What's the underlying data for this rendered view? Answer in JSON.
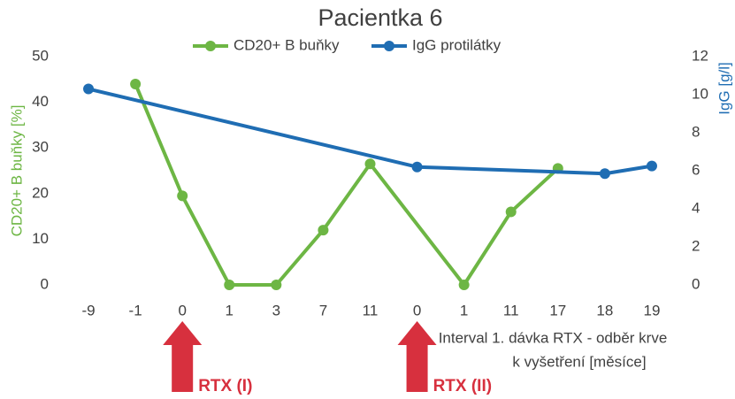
{
  "chart_data": {
    "type": "line",
    "title": "Pacientka 6",
    "categories": [
      "-9",
      "-1",
      "0",
      "1",
      "3",
      "7",
      "11",
      "0",
      "1",
      "11",
      "17",
      "18",
      "19"
    ],
    "series": [
      {
        "name": "CD20+ B buňky",
        "color": "#6db644",
        "values": [
          null,
          44,
          19.5,
          0,
          0,
          12,
          26.5,
          null,
          0,
          16,
          25.5,
          null,
          null
        ]
      },
      {
        "name": "IgG protilátky",
        "color": "#1f6db3",
        "axis": "y2",
        "values": [
          10.3,
          null,
          null,
          null,
          null,
          null,
          null,
          6.2,
          null,
          null,
          null,
          5.85,
          6.25
        ]
      }
    ],
    "connect_gaps": true,
    "ylabel": "CD20+ B buňky [%]",
    "y2label": "IgG [g/l]",
    "xlabel": [
      "Interval 1. dávka RTX - odběr krve",
      "k vyšetření [měsíce]"
    ],
    "ylim": [
      0,
      50
    ],
    "yticks": [
      0,
      10,
      20,
      30,
      40,
      50
    ],
    "y2lim": [
      0,
      12
    ],
    "y2ticks": [
      0,
      2,
      4,
      6,
      8,
      10,
      12
    ],
    "annotations": [
      "RTX (I)",
      "RTX (II)"
    ]
  }
}
